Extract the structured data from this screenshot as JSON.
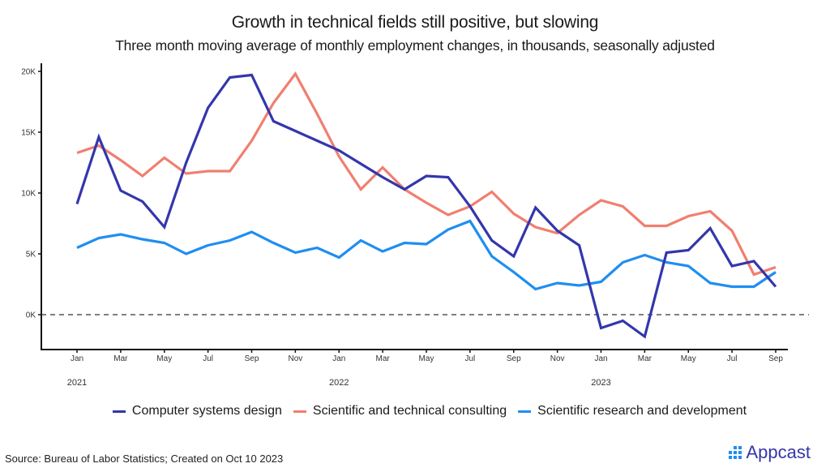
{
  "header": {
    "title": "Growth in technical fields still positive, but slowing",
    "subtitle": "Three month moving average of monthly employment changes, in thousands, seasonally adjusted"
  },
  "footer": {
    "source": "Source: Bureau of Labor Statistics; Created on Oct 10 2023",
    "logo_text": "Appcast"
  },
  "chart_data": {
    "type": "line",
    "title": "Growth in technical fields still positive, but slowing",
    "subtitle": "Three month moving average of monthly employment changes, in thousands, seasonally adjusted",
    "xlabel": "",
    "ylabel": "",
    "ylim": [
      -3,
      20.5
    ],
    "yticks": [
      0,
      5,
      10,
      15,
      20
    ],
    "ytick_labels": [
      "0K",
      "5K",
      "10K",
      "15K",
      "20K"
    ],
    "zero_line": "dashed",
    "grid": false,
    "legend_position": "bottom",
    "x": [
      "2021-01",
      "2021-02",
      "2021-03",
      "2021-04",
      "2021-05",
      "2021-06",
      "2021-07",
      "2021-08",
      "2021-09",
      "2021-10",
      "2021-11",
      "2021-12",
      "2022-01",
      "2022-02",
      "2022-03",
      "2022-04",
      "2022-05",
      "2022-06",
      "2022-07",
      "2022-08",
      "2022-09",
      "2022-10",
      "2022-11",
      "2022-12",
      "2023-01",
      "2023-02",
      "2023-03",
      "2023-04",
      "2023-05",
      "2023-06",
      "2023-07",
      "2023-08",
      "2023-09"
    ],
    "xticks": [
      {
        "index": 0,
        "label": "Jan"
      },
      {
        "index": 2,
        "label": "Mar"
      },
      {
        "index": 4,
        "label": "May"
      },
      {
        "index": 6,
        "label": "Jul"
      },
      {
        "index": 8,
        "label": "Sep"
      },
      {
        "index": 10,
        "label": "Nov"
      },
      {
        "index": 12,
        "label": "Jan"
      },
      {
        "index": 14,
        "label": "Mar"
      },
      {
        "index": 16,
        "label": "May"
      },
      {
        "index": 18,
        "label": "Jul"
      },
      {
        "index": 20,
        "label": "Sep"
      },
      {
        "index": 22,
        "label": "Nov"
      },
      {
        "index": 24,
        "label": "Jan"
      },
      {
        "index": 26,
        "label": "Mar"
      },
      {
        "index": 28,
        "label": "May"
      },
      {
        "index": 30,
        "label": "Jul"
      },
      {
        "index": 32,
        "label": "Sep"
      }
    ],
    "year_labels": [
      {
        "index": 0,
        "label": "2021"
      },
      {
        "index": 12,
        "label": "2022"
      },
      {
        "index": 24,
        "label": "2023"
      }
    ],
    "series": [
      {
        "name": "Computer systems design",
        "color": "#3436ac",
        "values": [
          9.1,
          14.6,
          10.2,
          9.3,
          7.2,
          12.5,
          17.0,
          19.5,
          19.7,
          15.9,
          15.1,
          14.3,
          13.5,
          12.4,
          11.3,
          10.3,
          11.4,
          11.3,
          8.9,
          6.1,
          4.8,
          8.8,
          6.9,
          5.7,
          -1.1,
          -0.5,
          -1.8,
          5.1,
          5.3,
          7.1,
          4.0,
          4.4,
          2.3
        ]
      },
      {
        "name": "Scientific and technical consulting",
        "color": "#f07f6f",
        "values": [
          13.3,
          13.9,
          12.7,
          11.4,
          12.9,
          11.6,
          11.8,
          11.8,
          14.3,
          17.4,
          19.8,
          16.5,
          13.0,
          10.3,
          12.1,
          10.3,
          9.2,
          8.2,
          8.9,
          10.1,
          8.3,
          7.2,
          6.7,
          8.2,
          9.4,
          8.9,
          7.3,
          7.3,
          8.1,
          8.5,
          6.9,
          3.3,
          3.9
        ]
      },
      {
        "name": "Scientific research and development",
        "color": "#1f8ef1",
        "values": [
          5.5,
          6.3,
          6.6,
          6.2,
          5.9,
          5.0,
          5.7,
          6.1,
          6.8,
          5.9,
          5.1,
          5.5,
          4.7,
          6.1,
          5.2,
          5.9,
          5.8,
          7.0,
          7.7,
          4.8,
          3.5,
          2.1,
          2.6,
          2.4,
          2.7,
          4.3,
          4.9,
          4.3,
          4.0,
          2.6,
          2.3,
          2.3,
          3.5
        ]
      }
    ]
  }
}
